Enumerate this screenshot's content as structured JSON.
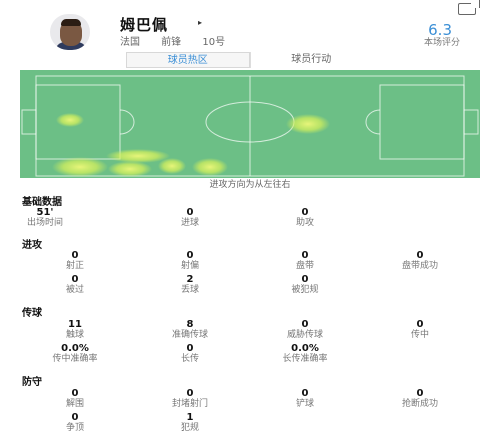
{
  "player": {
    "name": "姆巴佩",
    "caret": "▸",
    "team": "法国",
    "position": "前锋",
    "number": "10号",
    "rating": "6.3",
    "rating_label": "本场评分"
  },
  "tabs": [
    "球员热区",
    "球员行动"
  ],
  "heatmap": {
    "direction_label": "进攻方向为从左往右"
  },
  "sections": {
    "basic": {
      "title": "基础数据",
      "stats": [
        {
          "value": "51'",
          "label": "出场时间"
        },
        {
          "value": "0",
          "label": "进球"
        },
        {
          "value": "0",
          "label": "助攻"
        }
      ]
    },
    "attack": {
      "title": "进攻",
      "stats": [
        {
          "value": "0",
          "label": "射正"
        },
        {
          "value": "0",
          "label": "射偏"
        },
        {
          "value": "0",
          "label": "盘带"
        },
        {
          "value": "0",
          "label": "盘带成功"
        },
        {
          "value": "0",
          "label": "被过"
        },
        {
          "value": "2",
          "label": "丢球"
        },
        {
          "value": "0",
          "label": "被犯规"
        }
      ]
    },
    "passing": {
      "title": "传球",
      "stats": [
        {
          "value": "11",
          "label": "触球"
        },
        {
          "value": "8",
          "label": "准确传球"
        },
        {
          "value": "0",
          "label": "威胁传球"
        },
        {
          "value": "0",
          "label": "传中"
        },
        {
          "value": "0.0%",
          "label": "传中准确率"
        },
        {
          "value": "0",
          "label": "长传"
        },
        {
          "value": "0.0%",
          "label": "长传准确率"
        }
      ]
    },
    "defense": {
      "title": "防守",
      "stats": [
        {
          "value": "0",
          "label": "解围"
        },
        {
          "value": "0",
          "label": "封堵射门"
        },
        {
          "value": "0",
          "label": "铲球"
        },
        {
          "value": "0",
          "label": "抢断成功"
        },
        {
          "value": "0",
          "label": "争顶"
        },
        {
          "value": "1",
          "label": "犯规"
        }
      ]
    }
  },
  "colors": {
    "accent": "#3b8fd6",
    "pitch": "#6cbf86",
    "heat": "#d8f25a"
  },
  "icons": {
    "share": "share-icon"
  }
}
